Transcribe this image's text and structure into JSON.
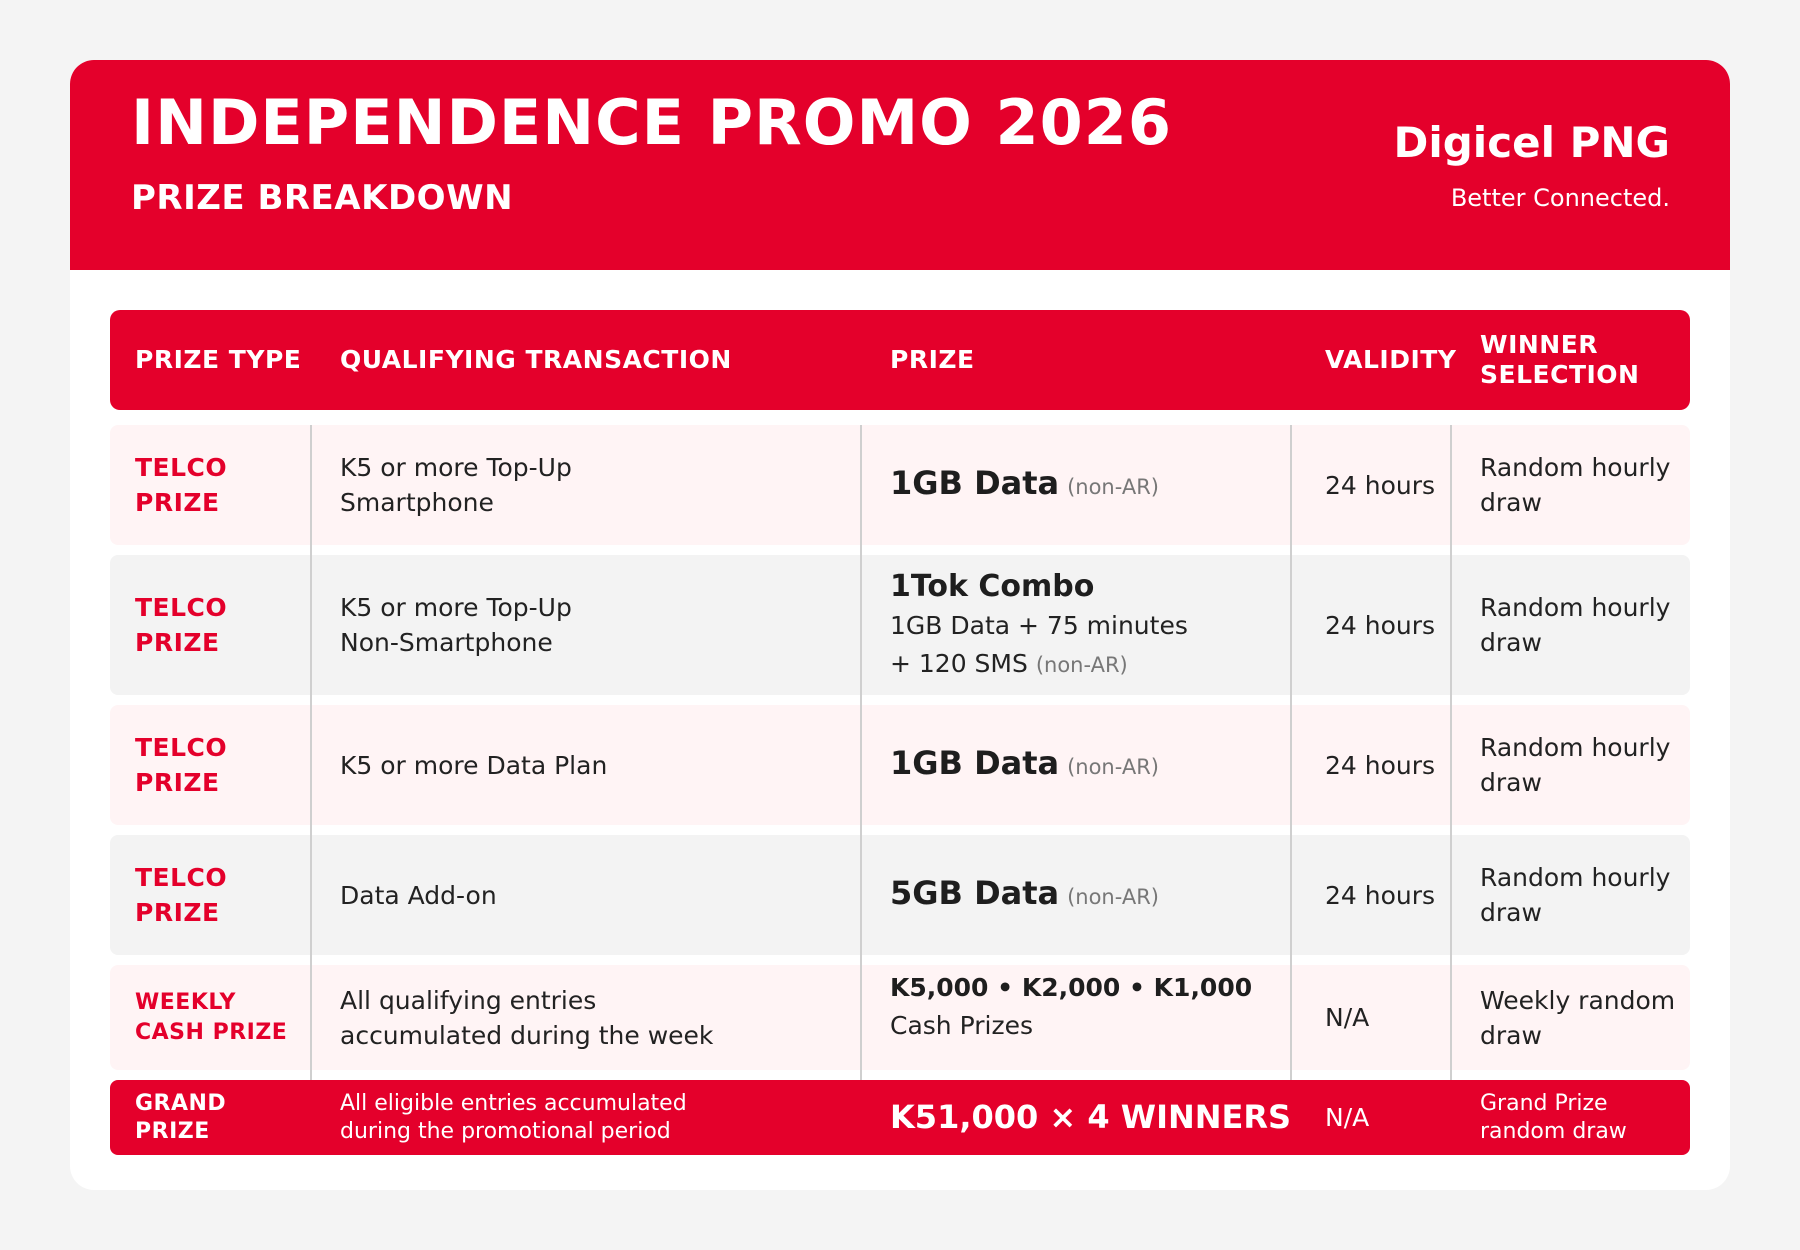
{
  "header": {
    "title": "INDEPENDENCE PROMO 2026",
    "subtitle": "PRIZE BREAKDOWN",
    "brand": "Digicel PNG",
    "tagline": "Better Connected."
  },
  "table": {
    "columns": [
      "PRIZE TYPE",
      "QUALIFYING TRANSACTION",
      "PRIZE",
      "VALIDITY",
      "WINNER\nSELECTION"
    ],
    "column_header_winner_line1": "WINNER",
    "column_header_winner_line2": "SELECTION",
    "rows": [
      {
        "type_line1": "TELCO",
        "type_line2": "PRIZE",
        "qual_line1": "K5 or more Top-Up",
        "qual_line2": "Smartphone",
        "prize": "1GB Data",
        "prize_note": "(non-AR)",
        "validity": "24 hours",
        "selection_line1": "Random hourly",
        "selection_line2": "draw"
      },
      {
        "type_line1": "TELCO",
        "type_line2": "PRIZE",
        "qual_line1": "K5 or more Top-Up",
        "qual_line2": "Non-Smartphone",
        "prize_title": "1Tok Combo",
        "prize_detail1": "1GB Data + 75 minutes",
        "prize_detail2": "+ 120 SMS",
        "prize_note": "(non-AR)",
        "validity": "24 hours",
        "selection_line1": "Random hourly",
        "selection_line2": "draw"
      },
      {
        "type_line1": "TELCO",
        "type_line2": "PRIZE",
        "qual_line1": "K5 or more Data Plan",
        "prize": "1GB Data",
        "prize_note": "(non-AR)",
        "validity": "24 hours",
        "selection_line1": "Random hourly",
        "selection_line2": "draw"
      },
      {
        "type_line1": "TELCO",
        "type_line2": "PRIZE",
        "qual_line1": "Data Add-on",
        "prize": "5GB Data",
        "prize_note": "(non-AR)",
        "validity": "24 hours",
        "selection_line1": "Random hourly",
        "selection_line2": "draw"
      },
      {
        "type_line1": "WEEKLY",
        "type_line2": "CASH PRIZE",
        "qual_line1": "All qualifying entries",
        "qual_line2": "accumulated during the week",
        "prize_amounts": "K5,000 • K2,000 • K1,000",
        "prize_detail1": "Cash Prizes",
        "validity": "N/A",
        "selection_line1": "Weekly random",
        "selection_line2": "draw"
      }
    ],
    "grand": {
      "type_line1": "GRAND",
      "type_line2": "PRIZE",
      "qual_line1": "All eligible entries accumulated",
      "qual_line2": "during the promotional period",
      "prize": "K51,000 × 4 WINNERS",
      "validity": "N/A",
      "selection_line1": "Grand Prize",
      "selection_line2": "random draw"
    }
  },
  "colors": {
    "brand_red": "#e4002b",
    "row_pink": "#fff4f5",
    "row_grey": "#f3f3f3"
  }
}
